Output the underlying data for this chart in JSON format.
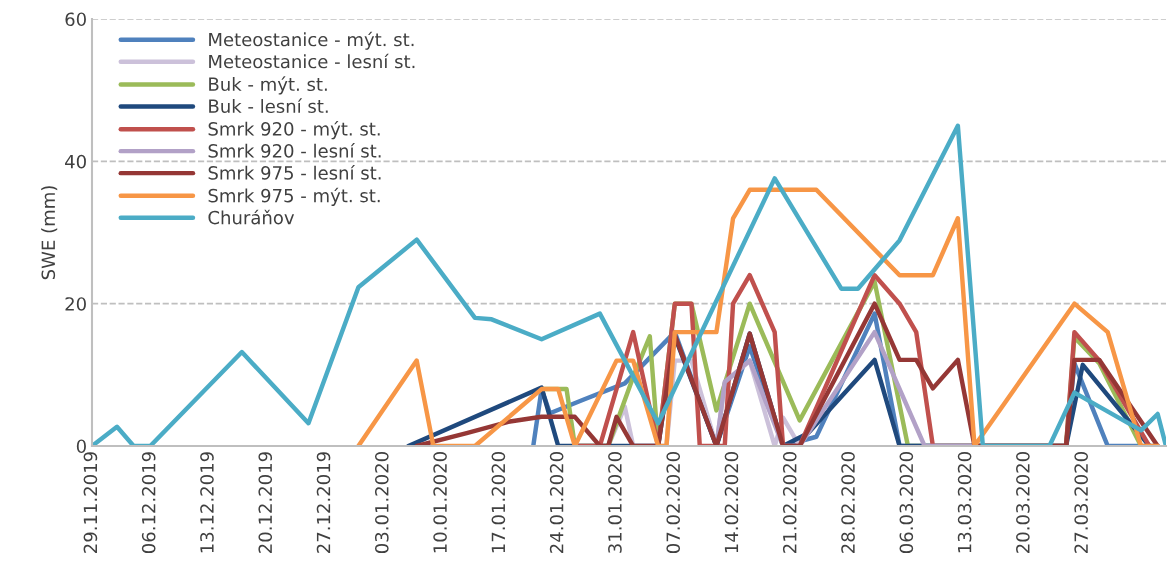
{
  "chart_data": {
    "type": "line",
    "ylabel": "SWE (mm)",
    "xlim": [
      "2019-11-29",
      "2020-04-06"
    ],
    "ylim": [
      0,
      60
    ],
    "yticks": [
      0,
      20,
      40,
      60
    ],
    "xticks": [
      {
        "value": "2019-11-29",
        "label": "29.11.2019"
      },
      {
        "value": "2019-12-06",
        "label": "06.12.2019"
      },
      {
        "value": "2019-12-13",
        "label": "13.12.2019"
      },
      {
        "value": "2019-12-20",
        "label": "20.12.2019"
      },
      {
        "value": "2019-12-27",
        "label": "27.12.2019"
      },
      {
        "value": "2020-01-03",
        "label": "03.01.2020"
      },
      {
        "value": "2020-01-10",
        "label": "10.01.2020"
      },
      {
        "value": "2020-01-17",
        "label": "17.01.2020"
      },
      {
        "value": "2020-01-24",
        "label": "24.01.2020"
      },
      {
        "value": "2020-01-31",
        "label": "31.01.2020"
      },
      {
        "value": "2020-02-07",
        "label": "07.02.2020"
      },
      {
        "value": "2020-02-14",
        "label": "14.02.2020"
      },
      {
        "value": "2020-02-21",
        "label": "21.02.2020"
      },
      {
        "value": "2020-02-28",
        "label": "28.02.2020"
      },
      {
        "value": "2020-03-06",
        "label": "06.03.2020"
      },
      {
        "value": "2020-03-13",
        "label": "13.03.2020"
      },
      {
        "value": "2020-03-20",
        "label": "20.03.2020"
      },
      {
        "value": "2020-03-27",
        "label": "27.03.2020"
      }
    ],
    "grid": "y",
    "legend": "top left",
    "line_style": "solid",
    "series": [
      {
        "name": "Meteostanice - mýt. st.",
        "color": "#4f81bd",
        "x": [
          "2020-01-21",
          "2020-01-22",
          "2020-01-23",
          "2020-01-27",
          "2020-02-01",
          "2020-02-07",
          "2020-02-12",
          "2020-02-16",
          "2020-02-20",
          "2020-02-24",
          "2020-03-02",
          "2020-03-05",
          "2020-03-25",
          "2020-03-26",
          "2020-03-30",
          "2020-04-02",
          "2020-04-05"
        ],
        "values": [
          0,
          8,
          4.6,
          6.5,
          8.8,
          16,
          0,
          14,
          0,
          1.3,
          18.6,
          0,
          0,
          11.6,
          0,
          0,
          0
        ]
      },
      {
        "name": "Meteostanice - lesní st.",
        "color": "#ccc1da",
        "x": [
          "2020-01-30",
          "2020-02-01",
          "2020-02-02",
          "2020-02-06",
          "2020-02-07",
          "2020-02-09",
          "2020-02-12",
          "2020-02-13",
          "2020-02-16",
          "2020-02-19",
          "2020-02-20",
          "2020-02-22"
        ],
        "values": [
          0,
          5.5,
          0,
          0,
          12,
          12,
          0,
          8.8,
          12,
          0,
          4,
          0
        ]
      },
      {
        "name": "Buk - mýt. st.",
        "color": "#9bbb59",
        "x": [
          "2020-01-22",
          "2020-01-25",
          "2020-01-26",
          "2020-01-30",
          "2020-02-02",
          "2020-02-04",
          "2020-02-05",
          "2020-02-07",
          "2020-02-09",
          "2020-02-12",
          "2020-02-16",
          "2020-02-22",
          "2020-03-02",
          "2020-03-06",
          "2020-03-25",
          "2020-03-26",
          "2020-03-29",
          "2020-04-03"
        ],
        "values": [
          8,
          8,
          0,
          0,
          9.7,
          15.4,
          0,
          20,
          20,
          5,
          20,
          3.6,
          23.1,
          0,
          0,
          15.3,
          11.6,
          0
        ]
      },
      {
        "name": "Buk - lesní st.",
        "color": "#1f497d",
        "x": [
          "2020-01-06",
          "2020-01-22",
          "2020-01-24",
          "2020-02-05",
          "2020-02-07",
          "2020-02-12",
          "2020-02-16",
          "2020-02-20",
          "2020-02-23",
          "2020-03-02",
          "2020-03-05",
          "2020-03-25",
          "2020-03-27",
          "2020-04-04"
        ],
        "values": [
          0,
          8.2,
          0,
          0,
          15.4,
          0,
          15.8,
          0,
          1.8,
          12.1,
          0,
          0,
          11.4,
          0
        ]
      },
      {
        "name": "Smrk 920 - mýt. st.",
        "color": "#c0504d",
        "x": [
          "2020-01-26",
          "2020-01-29",
          "2020-02-02",
          "2020-02-05",
          "2020-02-07",
          "2020-02-09",
          "2020-02-10",
          "2020-02-13",
          "2020-02-14",
          "2020-02-16",
          "2020-02-19",
          "2020-02-20",
          "2020-02-22",
          "2020-03-02",
          "2020-03-05",
          "2020-03-07",
          "2020-03-09",
          "2020-03-25",
          "2020-03-26",
          "2020-03-29",
          "2020-04-04"
        ],
        "values": [
          0,
          0,
          16,
          0,
          20,
          20,
          0,
          0,
          20,
          24,
          16,
          0,
          0,
          24,
          20,
          16,
          0,
          0,
          16,
          12,
          0
        ]
      },
      {
        "name": "Smrk 920 - lesní st.",
        "color": "#b2a1c7",
        "x": [
          "2020-02-12",
          "2020-02-13",
          "2020-02-16",
          "2020-02-20",
          "2020-02-22",
          "2020-03-02",
          "2020-03-08",
          "2020-03-14"
        ],
        "values": [
          0,
          9,
          12,
          0,
          0,
          16,
          0,
          0
        ]
      },
      {
        "name": "Smrk 975 - lesní st.",
        "color": "#953735",
        "x": [
          "2020-01-07",
          "2020-01-13",
          "2020-01-18",
          "2020-01-22",
          "2020-01-26",
          "2020-01-29",
          "2020-01-30",
          "2020-01-31",
          "2020-02-02",
          "2020-02-05",
          "2020-02-07",
          "2020-02-12",
          "2020-02-16",
          "2020-02-20",
          "2020-02-22",
          "2020-03-02",
          "2020-03-05",
          "2020-03-07",
          "2020-03-09",
          "2020-03-12",
          "2020-03-14",
          "2020-03-25",
          "2020-03-26",
          "2020-03-29",
          "2020-04-05"
        ],
        "values": [
          0,
          1.8,
          3.4,
          4.1,
          4.1,
          0,
          0,
          4.1,
          0,
          0,
          15.6,
          0,
          15.8,
          0,
          0,
          20,
          12.1,
          12.1,
          8.1,
          12.1,
          0,
          0,
          12.1,
          12.1,
          0
        ]
      },
      {
        "name": "Smrk 975 - mýt. st.",
        "color": "#f79646",
        "x": [
          "2019-12-31",
          "2020-01-07",
          "2020-01-09",
          "2020-01-14",
          "2020-01-22",
          "2020-01-24",
          "2020-01-26",
          "2020-01-31",
          "2020-02-02",
          "2020-02-05",
          "2020-02-06",
          "2020-02-07",
          "2020-02-12",
          "2020-02-14",
          "2020-02-16",
          "2020-02-24",
          "2020-03-05",
          "2020-03-09",
          "2020-03-12",
          "2020-03-14",
          "2020-03-26",
          "2020-03-30",
          "2020-04-03",
          "2020-04-05"
        ],
        "values": [
          0,
          12,
          0,
          0,
          8,
          8,
          0,
          12,
          12,
          0,
          0,
          16,
          16,
          32,
          36,
          36,
          24,
          24,
          32,
          0,
          20,
          16,
          0,
          0
        ]
      },
      {
        "name": "Churáňov",
        "color": "#4bacc6",
        "x": [
          "2019-11-29",
          "2019-12-02",
          "2019-12-04",
          "2019-12-06",
          "2019-12-17",
          "2019-12-25",
          "2019-12-31",
          "2020-01-07",
          "2020-01-14",
          "2020-01-16",
          "2020-01-22",
          "2020-01-29",
          "2020-02-05",
          "2020-02-19",
          "2020-02-27",
          "2020-02-29",
          "2020-03-05",
          "2020-03-12",
          "2020-03-15",
          "2020-03-23",
          "2020-03-26",
          "2020-04-03",
          "2020-04-05",
          "2020-04-06"
        ],
        "values": [
          0,
          2.7,
          0,
          0,
          13.2,
          3.2,
          22.3,
          29,
          18,
          17.8,
          15,
          18.6,
          3.2,
          37.6,
          22.1,
          22.1,
          28.9,
          45,
          0,
          0,
          7.5,
          2.2,
          4.5,
          0
        ]
      }
    ]
  }
}
